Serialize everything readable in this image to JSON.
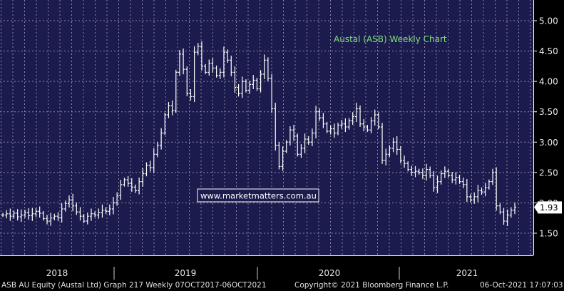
{
  "chart_data": {
    "type": "ohlc",
    "title": "Austal (ASB) Weekly Chart",
    "watermark": "www.marketmatters.com.au",
    "last_price_label": "1.93",
    "last_price": 1.93,
    "ylim": [
      1.2,
      5.2
    ],
    "y_ticks": [
      {
        "value": 1.5,
        "label": "1.50"
      },
      {
        "value": 2.0,
        "label": "2.00"
      },
      {
        "value": 2.5,
        "label": "2.50"
      },
      {
        "value": 3.0,
        "label": "3.00"
      },
      {
        "value": 3.5,
        "label": "3.50"
      },
      {
        "value": 4.0,
        "label": "4.00"
      },
      {
        "value": 4.5,
        "label": "4.50"
      },
      {
        "value": 5.0,
        "label": "5.00"
      }
    ],
    "x_labels": [
      "2018",
      "2019",
      "2020",
      "2021"
    ],
    "grid": true,
    "footer": {
      "left": "ASB AU Equity (Austal Ltd) Graph 217  Weekly 07OCT2017-06OCT2021",
      "center": "Copyright© 2021 Bloomberg Finance L.P.",
      "right": "06-Oct-2021 17:07:03"
    },
    "colors": {
      "background": "#000000",
      "plot_background": "#1b1b4d",
      "grid": "#8a8aa8",
      "bars": "#ffffff",
      "title": "#7fe07f",
      "last_price_box": "#ffffff",
      "watermark_border": "#ffffff"
    },
    "closes": [
      1.8,
      1.82,
      1.78,
      1.83,
      1.77,
      1.8,
      1.84,
      1.79,
      1.82,
      1.86,
      1.83,
      1.74,
      1.7,
      1.75,
      1.78,
      1.76,
      1.9,
      1.99,
      2.05,
      1.95,
      1.85,
      1.78,
      1.7,
      1.78,
      1.82,
      1.8,
      1.84,
      1.88,
      1.86,
      1.9,
      2.0,
      2.12,
      2.3,
      2.38,
      2.32,
      2.26,
      2.2,
      2.35,
      2.48,
      2.62,
      2.58,
      2.8,
      2.95,
      3.15,
      3.45,
      3.6,
      3.52,
      4.15,
      4.45,
      4.2,
      3.8,
      3.75,
      4.48,
      4.58,
      4.25,
      4.15,
      4.3,
      4.22,
      4.1,
      4.15,
      4.48,
      4.35,
      4.15,
      3.9,
      3.8,
      4.0,
      3.85,
      3.95,
      4.02,
      3.88,
      4.12,
      4.35,
      4.05,
      3.55,
      2.95,
      2.6,
      2.85,
      3.0,
      3.2,
      3.1,
      2.8,
      2.9,
      3.05,
      3.0,
      3.15,
      3.5,
      3.4,
      3.3,
      3.18,
      3.22,
      3.15,
      3.28,
      3.3,
      3.25,
      3.35,
      3.42,
      3.55,
      3.3,
      3.25,
      3.2,
      3.35,
      3.45,
      3.25,
      2.7,
      2.8,
      2.9,
      3.0,
      2.88,
      2.7,
      2.65,
      2.55,
      2.5,
      2.52,
      2.5,
      2.45,
      2.55,
      2.45,
      2.25,
      2.35,
      2.48,
      2.52,
      2.45,
      2.38,
      2.42,
      2.35,
      2.3,
      2.1,
      2.05,
      2.1,
      2.2,
      2.18,
      2.25,
      2.35,
      2.5,
      1.95,
      1.85,
      1.7,
      1.8,
      1.88,
      1.93
    ]
  }
}
